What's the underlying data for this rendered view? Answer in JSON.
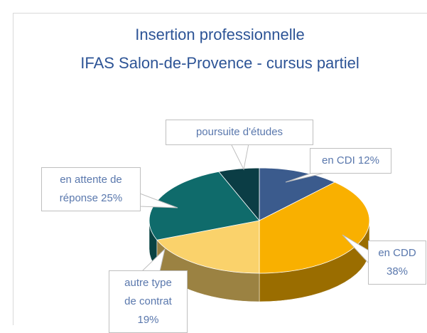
{
  "chart_data": {
    "type": "pie3d",
    "title": "Insertion professionnelle",
    "subtitle": "IFAS Salon-de-Provence - cursus partiel",
    "categories": [
      "en CDI",
      "en CDD",
      "autre type de contrat",
      "en attente de réponse",
      "poursuite d'études"
    ],
    "values": [
      12,
      38,
      19,
      25,
      6
    ],
    "value_labels": [
      "12%",
      "38%",
      "19%",
      "25%",
      null
    ],
    "colors": [
      "#3b5b8d",
      "#f9b000",
      "#fad26b",
      "#0f6b6b",
      "#0b3d45"
    ]
  }
}
